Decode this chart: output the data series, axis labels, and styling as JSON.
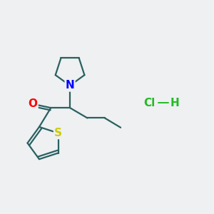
{
  "background_color": "#eef0f2",
  "line_color": "#2a6060",
  "atom_colors": {
    "O": "#ff0000",
    "N": "#0000ff",
    "S": "#cccc00",
    "Cl": "#22bb22",
    "H": "#22bb22"
  },
  "line_width": 1.6,
  "font_size_atom": 11,
  "hcl_font_size": 11,
  "figsize": [
    3.0,
    3.0
  ],
  "dpi": 100,
  "xlim": [
    0,
    10
  ],
  "ylim": [
    0,
    10
  ]
}
